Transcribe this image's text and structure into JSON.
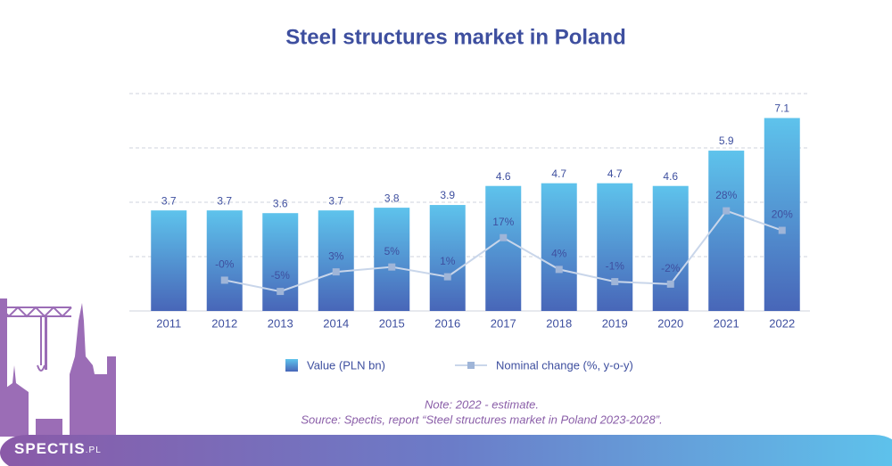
{
  "chart_data": {
    "type": "bar",
    "title": "Steel structures market in Poland",
    "categories": [
      "2011",
      "2012",
      "2013",
      "2014",
      "2015",
      "2016",
      "2017",
      "2018",
      "2019",
      "2020",
      "2021",
      "2022"
    ],
    "series": [
      {
        "name": "Value (PLN bn)",
        "type": "bar",
        "color": "#4866b8",
        "values": [
          3.7,
          3.7,
          3.6,
          3.7,
          3.8,
          3.9,
          4.6,
          4.7,
          4.7,
          4.6,
          5.9,
          7.1
        ]
      },
      {
        "name": "Nominal change (%, y-o-y)",
        "type": "line",
        "axis": "y2",
        "color": "#c9d6ea",
        "values": [
          null,
          -0.4,
          -5,
          3,
          5,
          1,
          17,
          4,
          -1,
          -2,
          28,
          20
        ],
        "value_labels": [
          null,
          "-0%",
          "-5%",
          "3%",
          "5%",
          "1%",
          "17%",
          "4%",
          "-1%",
          "-2%",
          "28%",
          "20%"
        ]
      }
    ],
    "ylim": [
      0,
      8
    ],
    "yticks": [
      0,
      2,
      4,
      6,
      8
    ],
    "grid": true,
    "y2lim": [
      -13,
      76
    ],
    "note": "Note: 2022 - estimate.",
    "source": "Source: Spectis, report “Steel structures market in Poland 2023-2028”."
  },
  "logo": {
    "name": "SPECTIS",
    "suffix": ".PL"
  }
}
